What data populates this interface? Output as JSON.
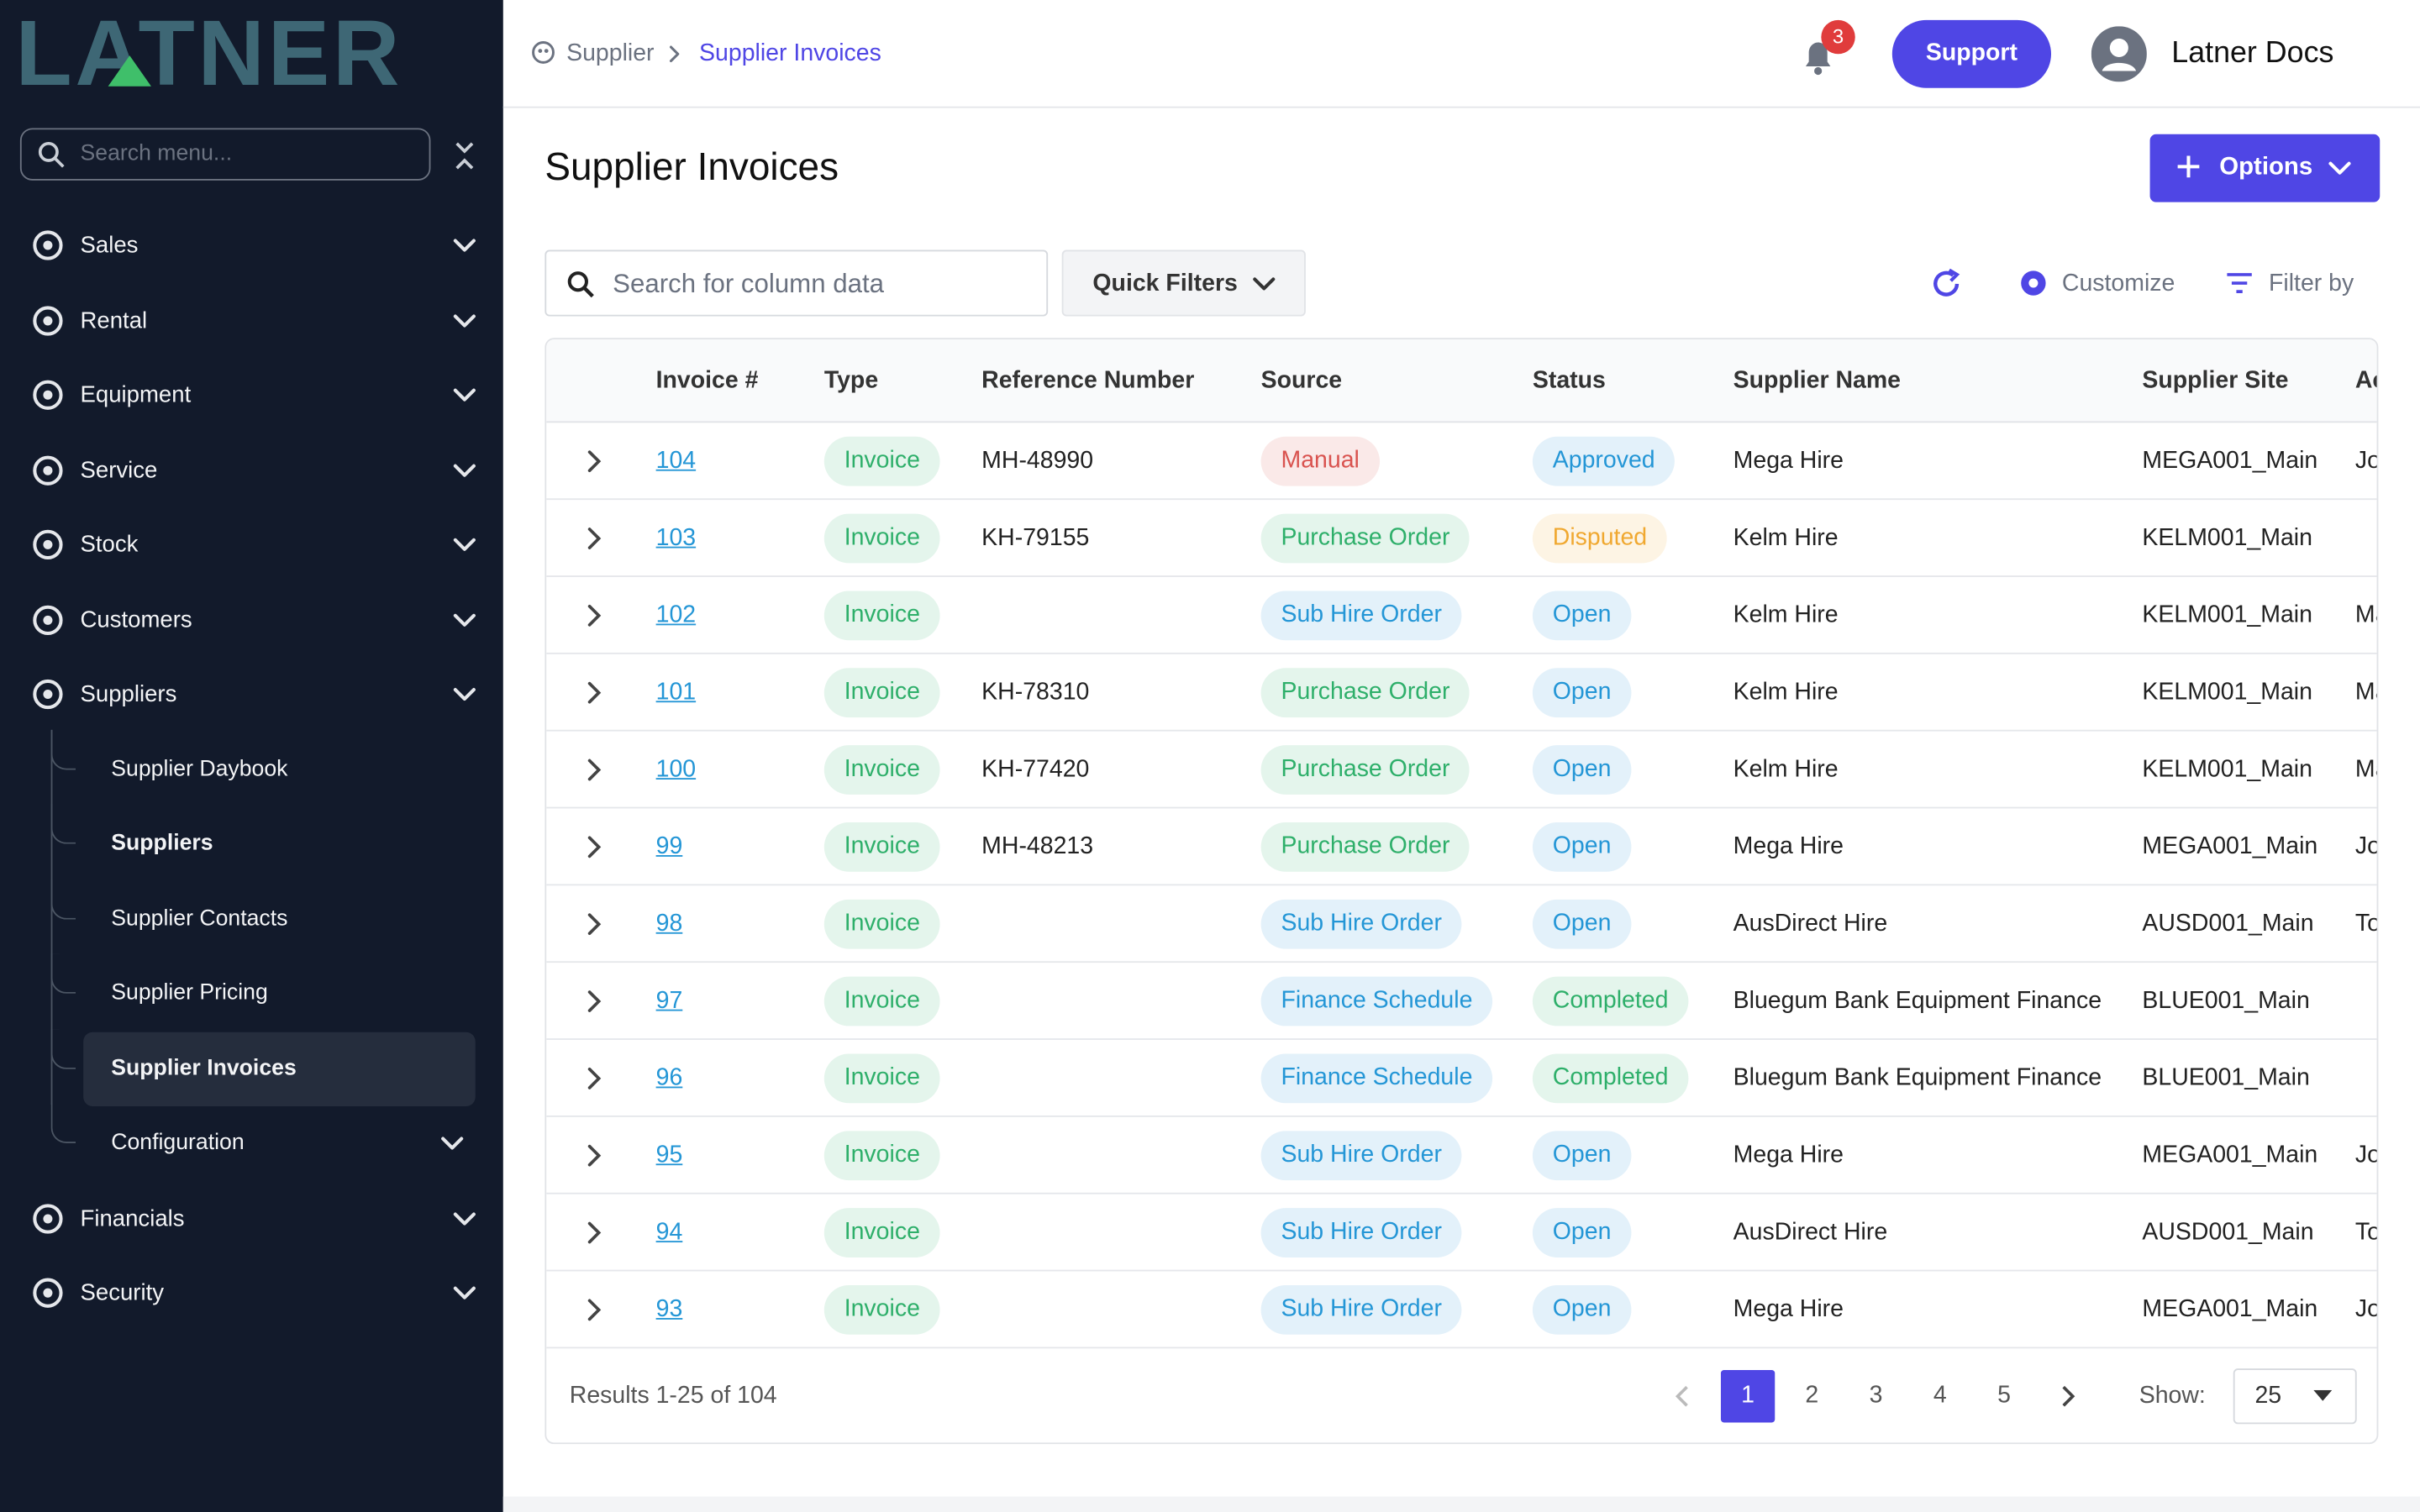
{
  "sidebar": {
    "brand": "LATNER",
    "search_placeholder": "Search menu...",
    "menu": [
      {
        "label": "Sales"
      },
      {
        "label": "Rental"
      },
      {
        "label": "Equipment"
      },
      {
        "label": "Service"
      },
      {
        "label": "Stock"
      },
      {
        "label": "Customers"
      },
      {
        "label": "Suppliers",
        "children": [
          "Supplier Daybook",
          "Suppliers",
          "Supplier Contacts",
          "Supplier Pricing",
          "Supplier Invoices",
          "Configuration"
        ]
      },
      {
        "label": "Financials"
      },
      {
        "label": "Security"
      }
    ]
  },
  "header": {
    "breadcrumb": [
      "Supplier",
      "Supplier Invoices"
    ],
    "notifications": "3",
    "support": "Support",
    "user": "Latner Docs"
  },
  "page": {
    "title": "Supplier Invoices",
    "options": "Options",
    "search_placeholder": "Search for column data",
    "quick_filters": "Quick Filters",
    "customize": "Customize",
    "filter_by": "Filter by"
  },
  "table": {
    "columns": [
      "Invoice #",
      "Type",
      "Reference Number",
      "Source",
      "Status",
      "Supplier Name",
      "Supplier Site",
      "Ac"
    ],
    "rows": [
      {
        "invoice": "104",
        "type": "Invoice",
        "reference": "MH-48990",
        "source": "Manual",
        "source_color": "#d9534f",
        "status": "Approved",
        "status_color": "#2496d6",
        "supplier": "Mega Hire",
        "site": "MEGA001_Main",
        "extra": "Jo"
      },
      {
        "invoice": "103",
        "type": "Invoice",
        "reference": "KH-79155",
        "source": "Purchase Order",
        "source_color": "#2eaf6a",
        "status": "Disputed",
        "status_color": "#f0a830",
        "supplier": "Kelm Hire",
        "site": "KELM001_Main",
        "extra": null
      },
      {
        "invoice": "102",
        "type": "Invoice",
        "reference": null,
        "source": "Sub Hire Order",
        "source_color": "#2496d6",
        "status": "Open",
        "status_color": "#2496d6",
        "supplier": "Kelm Hire",
        "site": "KELM001_Main",
        "extra": "Ma"
      },
      {
        "invoice": "101",
        "type": "Invoice",
        "reference": "KH-78310",
        "source": "Purchase Order",
        "source_color": "#2eaf6a",
        "status": "Open",
        "status_color": "#2496d6",
        "supplier": "Kelm Hire",
        "site": "KELM001_Main",
        "extra": "Ma"
      },
      {
        "invoice": "100",
        "type": "Invoice",
        "reference": "KH-77420",
        "source": "Purchase Order",
        "source_color": "#2eaf6a",
        "status": "Open",
        "status_color": "#2496d6",
        "supplier": "Kelm Hire",
        "site": "KELM001_Main",
        "extra": "Ma"
      },
      {
        "invoice": "99",
        "type": "Invoice",
        "reference": "MH-48213",
        "source": "Purchase Order",
        "source_color": "#2eaf6a",
        "status": "Open",
        "status_color": "#2496d6",
        "supplier": "Mega Hire",
        "site": "MEGA001_Main",
        "extra": "Jo"
      },
      {
        "invoice": "98",
        "type": "Invoice",
        "reference": null,
        "source": "Sub Hire Order",
        "source_color": "#2496d6",
        "status": "Open",
        "status_color": "#2496d6",
        "supplier": "AusDirect Hire",
        "site": "AUSD001_Main",
        "extra": "To"
      },
      {
        "invoice": "97",
        "type": "Invoice",
        "reference": null,
        "source": "Finance Schedule",
        "source_color": "#2496d6",
        "status": "Completed",
        "status_color": "#2eaf6a",
        "supplier": "Bluegum Bank Equipment Finance",
        "site": "BLUE001_Main",
        "extra": null
      },
      {
        "invoice": "96",
        "type": "Invoice",
        "reference": null,
        "source": "Finance Schedule",
        "source_color": "#2496d6",
        "status": "Completed",
        "status_color": "#2eaf6a",
        "supplier": "Bluegum Bank Equipment Finance",
        "site": "BLUE001_Main",
        "extra": null
      },
      {
        "invoice": "95",
        "type": "Invoice",
        "reference": null,
        "source": "Sub Hire Order",
        "source_color": "#2496d6",
        "status": "Open",
        "status_color": "#2496d6",
        "supplier": "Mega Hire",
        "site": "MEGA001_Main",
        "extra": "Jo"
      },
      {
        "invoice": "94",
        "type": "Invoice",
        "reference": null,
        "source": "Sub Hire Order",
        "source_color": "#2496d6",
        "status": "Open",
        "status_color": "#2496d6",
        "supplier": "AusDirect Hire",
        "site": "AUSD001_Main",
        "extra": "To"
      },
      {
        "invoice": "93",
        "type": "Invoice",
        "reference": null,
        "source": "Sub Hire Order",
        "source_color": "#2496d6",
        "status": "Open",
        "status_color": "#2496d6",
        "supplier": "Mega Hire",
        "site": "MEGA001_Main",
        "extra": "Jo"
      }
    ],
    "type_color": "#2eaf6a"
  },
  "footer": {
    "results": "Results 1-25 of 104",
    "pages": [
      "1",
      "2",
      "3",
      "4",
      "5"
    ],
    "show_label": "Show:",
    "page_size": "25"
  }
}
